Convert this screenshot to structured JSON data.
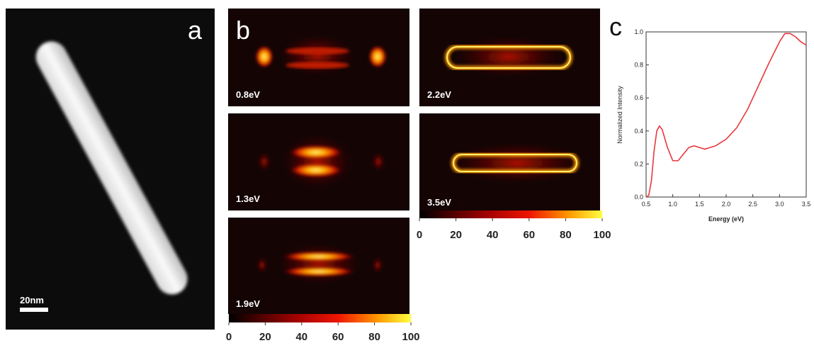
{
  "panel_a": {
    "label": "a",
    "scale_bar": "20nm"
  },
  "panel_b": {
    "label": "b",
    "maps": [
      {
        "energy": "0.8eV"
      },
      {
        "energy": "1.3eV"
      },
      {
        "energy": "1.9eV"
      },
      {
        "energy": "2.2eV"
      },
      {
        "energy": "3.5eV"
      }
    ],
    "colorbars": [
      {
        "ticks": [
          0,
          20,
          40,
          60,
          80,
          100
        ]
      },
      {
        "ticks": [
          0,
          20,
          40,
          60,
          80,
          100
        ]
      }
    ]
  },
  "panel_c": {
    "label": "c"
  },
  "chart_data": {
    "type": "line",
    "x_label": "Energy (eV)",
    "y_label": "Normalized Intensity",
    "x": [
      0.5,
      0.55,
      0.6,
      0.65,
      0.7,
      0.75,
      0.8,
      0.9,
      1.0,
      1.1,
      1.2,
      1.3,
      1.4,
      1.5,
      1.6,
      1.7,
      1.8,
      2.0,
      2.2,
      2.4,
      2.6,
      2.8,
      3.0,
      3.1,
      3.2,
      3.3,
      3.4,
      3.5
    ],
    "series": [
      {
        "color": "#e8383d",
        "values": [
          0,
          0.01,
          0.1,
          0.28,
          0.4,
          0.43,
          0.41,
          0.3,
          0.22,
          0.22,
          0.26,
          0.3,
          0.31,
          0.3,
          0.29,
          0.3,
          0.31,
          0.35,
          0.42,
          0.53,
          0.67,
          0.81,
          0.94,
          0.99,
          0.99,
          0.97,
          0.94,
          0.92
        ]
      }
    ],
    "xlim": [
      0.5,
      3.5
    ],
    "ylim": [
      0,
      1.0
    ],
    "xticks": [
      0.5,
      {
        "value": 1.0,
        "label": "1.0"
      },
      1.5,
      {
        "value": 2.0,
        "label": "2.0"
      },
      2.5,
      {
        "value": 3.0,
        "label": "3.0"
      },
      3.5
    ],
    "yticks": [
      {
        "value": 0,
        "label": "0.0"
      },
      0.2,
      0.4,
      0.6,
      0.8,
      {
        "value": 1.0,
        "label": "1.0"
      }
    ]
  }
}
